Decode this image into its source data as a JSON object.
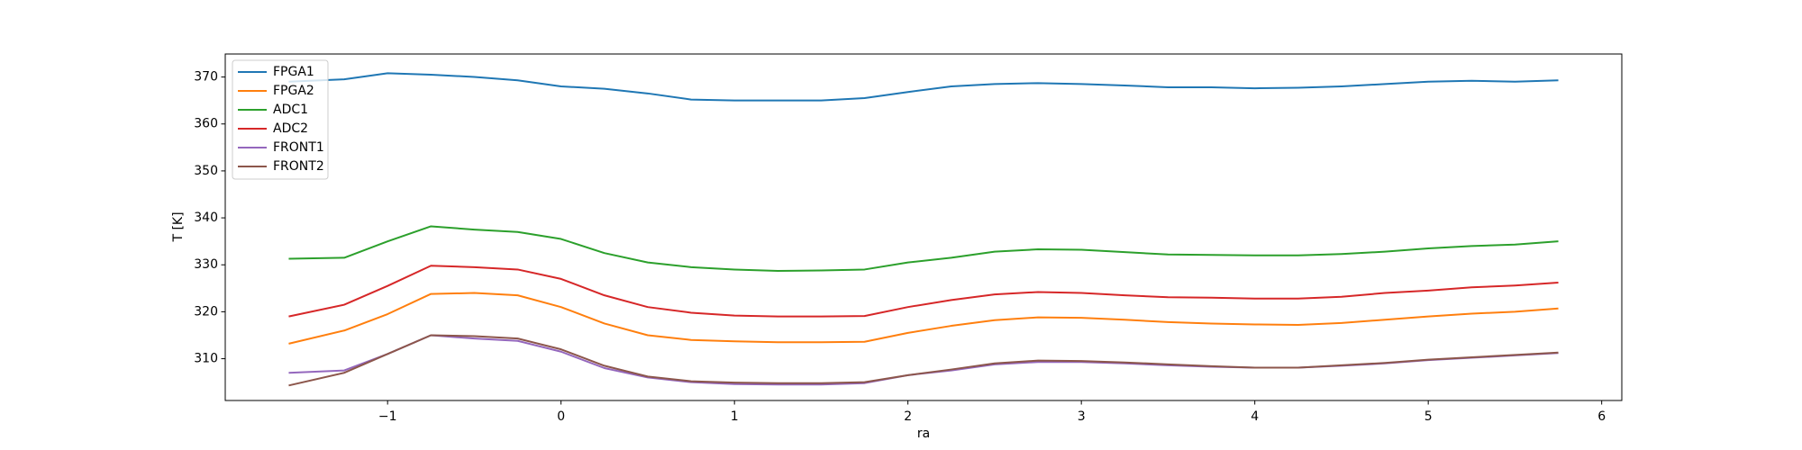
{
  "chart_data": {
    "type": "line",
    "xlabel": "ra",
    "ylabel": "T [K]",
    "x": [
      -1.57,
      -1.25,
      -1.0,
      -0.75,
      -0.5,
      -0.25,
      0,
      0.25,
      0.5,
      0.75,
      1.0,
      1.25,
      1.5,
      1.75,
      2.0,
      2.25,
      2.5,
      2.75,
      3.0,
      3.25,
      3.5,
      3.75,
      4.0,
      4.25,
      4.5,
      4.75,
      5.0,
      5.25,
      5.5,
      5.75
    ],
    "series": [
      {
        "name": "FPGA1",
        "color": "#1f77b4",
        "values": [
          369,
          369.5,
          370.8,
          370.5,
          370,
          369.3,
          368,
          367.5,
          366.5,
          365.2,
          365,
          365,
          365,
          365.5,
          366.8,
          368,
          368.5,
          368.7,
          368.5,
          368.2,
          367.8,
          367.8,
          367.6,
          367.7,
          368,
          368.5,
          369,
          369.2,
          369,
          369.3
        ]
      },
      {
        "name": "FPGA2",
        "color": "#ff7f0e",
        "values": [
          313.2,
          316,
          319.5,
          323.8,
          324,
          323.5,
          321,
          317.5,
          315,
          314,
          313.7,
          313.5,
          313.5,
          313.6,
          315.5,
          317,
          318.2,
          318.8,
          318.7,
          318.3,
          317.8,
          317.5,
          317.3,
          317.2,
          317.6,
          318.3,
          319,
          319.6,
          320,
          320.7
        ]
      },
      {
        "name": "ADC1",
        "color": "#2ca02c",
        "values": [
          331.3,
          331.5,
          335,
          338.2,
          337.5,
          337,
          335.5,
          332.5,
          330.5,
          329.5,
          329,
          328.7,
          328.8,
          329,
          330.5,
          331.5,
          332.8,
          333.3,
          333.2,
          332.7,
          332.2,
          332.1,
          332,
          332,
          332.3,
          332.8,
          333.5,
          334,
          334.3,
          335
        ]
      },
      {
        "name": "ADC2",
        "color": "#d62728",
        "values": [
          319,
          321.5,
          325.5,
          329.8,
          329.5,
          329,
          327,
          323.5,
          321,
          319.8,
          319.2,
          319,
          319,
          319.1,
          321,
          322.5,
          323.7,
          324.2,
          324,
          323.5,
          323.1,
          323,
          322.8,
          322.8,
          323.2,
          324,
          324.5,
          325.2,
          325.6,
          326.2
        ]
      },
      {
        "name": "FRONT1",
        "color": "#9467bd",
        "values": [
          307,
          307.5,
          311,
          315,
          314.3,
          313.8,
          311.5,
          308,
          306,
          305,
          304.6,
          304.5,
          304.5,
          304.8,
          306.5,
          307.5,
          308.8,
          309.3,
          309.3,
          309,
          308.6,
          308.3,
          308.1,
          308.1,
          308.5,
          309,
          309.7,
          310.2,
          310.7,
          311.2
        ]
      },
      {
        "name": "FRONT2",
        "color": "#8c564b",
        "values": [
          304.3,
          307,
          311,
          315,
          314.8,
          314.3,
          312,
          308.5,
          306.2,
          305.2,
          304.9,
          304.8,
          304.8,
          305,
          306.5,
          307.7,
          309,
          309.6,
          309.5,
          309.2,
          308.8,
          308.4,
          308.1,
          308.1,
          308.6,
          309.1,
          309.8,
          310.3,
          310.8,
          311.3
        ]
      }
    ],
    "xlim": [
      -1.936,
      6.116
    ],
    "xticks": [
      {
        "value": -1,
        "label": "−1"
      },
      0,
      1,
      2,
      3,
      4,
      5,
      6
    ],
    "ylim": [
      301.1,
      374.9
    ],
    "yticks": [
      310,
      320,
      330,
      340,
      350,
      360,
      370
    ],
    "grid": false,
    "legend": "upper-left"
  }
}
